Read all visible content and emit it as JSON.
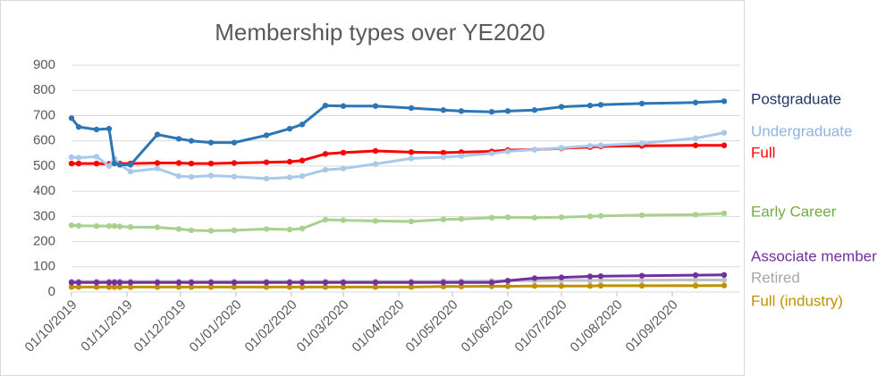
{
  "chart_data": {
    "type": "line",
    "title": "Membership types over YE2020",
    "x": [
      "01/10/2019",
      "05/10/2019",
      "15/10/2019",
      "22/10/2019",
      "25/10/2019",
      "28/10/2019",
      "03/11/2019",
      "18/11/2019",
      "30/11/2019",
      "07/12/2019",
      "18/12/2019",
      "31/12/2019",
      "18/01/2020",
      "31/01/2020",
      "07/02/2020",
      "20/02/2020",
      "01/03/2020",
      "19/03/2020",
      "08/04/2020",
      "26/04/2020",
      "06/05/2020",
      "23/05/2020",
      "01/06/2020",
      "16/06/2020",
      "01/07/2020",
      "17/07/2020",
      "23/07/2020",
      "15/08/2020",
      "14/09/2020",
      "30/09/2020"
    ],
    "xlim": [
      "01/10/2019",
      "09/10/2020"
    ],
    "xticks": [
      "01/10/2019",
      "01/11/2019",
      "01/12/2019",
      "01/01/2020",
      "01/02/2020",
      "01/03/2020",
      "01/04/2020",
      "01/05/2020",
      "01/06/2020",
      "01/07/2020",
      "01/08/2020",
      "01/09/2020"
    ],
    "ylim": [
      0,
      900
    ],
    "yticks": [
      0,
      100,
      200,
      300,
      400,
      500,
      600,
      700,
      800,
      900
    ],
    "grid": true,
    "series": [
      {
        "name": "Postgraduate",
        "color": "#2e75b6",
        "label_color": "#1f3864",
        "values": [
          690,
          655,
          645,
          648,
          510,
          505,
          505,
          625,
          608,
          600,
          593,
          593,
          622,
          648,
          665,
          740,
          738,
          738,
          730,
          722,
          718,
          715,
          718,
          722,
          735,
          740,
          743,
          748,
          752,
          757
        ]
      },
      {
        "name": "Undergraduate",
        "color": "#a9c9ea",
        "label_color": "#8fb4e3",
        "values": [
          535,
          533,
          537,
          500,
          530,
          505,
          478,
          490,
          460,
          457,
          462,
          458,
          450,
          455,
          460,
          485,
          490,
          508,
          530,
          535,
          540,
          550,
          558,
          565,
          572,
          580,
          582,
          590,
          610,
          632
        ]
      },
      {
        "name": "Full",
        "color": "#ff0000",
        "label_color": "#ff0000",
        "values": [
          510,
          510,
          510,
          508,
          512,
          510,
          510,
          512,
          512,
          510,
          510,
          512,
          515,
          517,
          522,
          548,
          553,
          560,
          555,
          553,
          555,
          558,
          563,
          565,
          570,
          575,
          578,
          580,
          582,
          582
        ]
      },
      {
        "name": "Early Career",
        "color": "#a9d18e",
        "label_color": "#70ad47",
        "values": [
          265,
          263,
          262,
          262,
          262,
          260,
          258,
          257,
          250,
          245,
          243,
          245,
          250,
          248,
          252,
          287,
          285,
          282,
          280,
          288,
          290,
          295,
          297,
          295,
          297,
          300,
          302,
          305,
          307,
          312
        ]
      },
      {
        "name": "Associate member",
        "color": "#7030a0",
        "label_color": "#7030a0",
        "values": [
          38,
          38,
          38,
          38,
          38,
          38,
          38,
          38,
          38,
          38,
          38,
          38,
          38,
          38,
          38,
          38,
          38,
          38,
          38,
          38,
          38,
          38,
          45,
          55,
          58,
          62,
          63,
          65,
          67,
          68
        ]
      },
      {
        "name": "Retired",
        "color": "#c0c0c0",
        "label_color": "#a6a6a6",
        "values": [
          42,
          42,
          42,
          42,
          42,
          42,
          42,
          42,
          42,
          42,
          42,
          42,
          42,
          42,
          42,
          42,
          42,
          42,
          42,
          43,
          43,
          44,
          45,
          45,
          46,
          46,
          47,
          47,
          48,
          48
        ]
      },
      {
        "name": "Full (industry)",
        "color": "#bf9000",
        "label_color": "#bf9000",
        "values": [
          20,
          20,
          20,
          20,
          20,
          20,
          20,
          20,
          20,
          20,
          20,
          20,
          20,
          20,
          20,
          20,
          20,
          20,
          20,
          22,
          22,
          23,
          23,
          24,
          24,
          24,
          25,
          25,
          25,
          26
        ]
      }
    ]
  }
}
